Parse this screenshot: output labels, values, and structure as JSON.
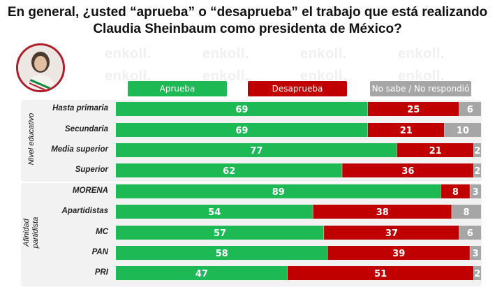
{
  "title_line1": "En general, ¿usted “aprueba” o “desaprueba” el trabajo que está realizando",
  "title_line2": "Claudia Sheinbaum como presidenta de México?",
  "watermark": "enkoll.",
  "legend": [
    {
      "label": "Aprueba",
      "color": "#1db954"
    },
    {
      "label": "Desaprueba",
      "color": "#c00000"
    },
    {
      "label": "No sabe / No respondió",
      "color": "#a6a6a6"
    }
  ],
  "groups": [
    {
      "label": "Nivel educativo"
    },
    {
      "label_line1": "Afinidad",
      "label_line2": "partidista"
    }
  ],
  "chart_data": {
    "type": "bar",
    "orientation": "horizontal-stacked-100",
    "categories": [
      "Hasta primaria",
      "Secundaria",
      "Media superior",
      "Superior",
      "MORENA",
      "Apartidistas",
      "MC",
      "PAN",
      "PRI"
    ],
    "series": [
      {
        "name": "Aprueba",
        "color": "#1db954",
        "values": [
          69,
          69,
          77,
          62,
          89,
          54,
          57,
          58,
          47
        ]
      },
      {
        "name": "Desaprueba",
        "color": "#c00000",
        "values": [
          25,
          21,
          21,
          36,
          8,
          38,
          37,
          39,
          51
        ]
      },
      {
        "name": "No sabe / No respondió",
        "color": "#a6a6a6",
        "values": [
          6,
          10,
          2,
          2,
          3,
          8,
          6,
          3,
          2
        ]
      }
    ],
    "xlim": [
      0,
      100
    ]
  }
}
